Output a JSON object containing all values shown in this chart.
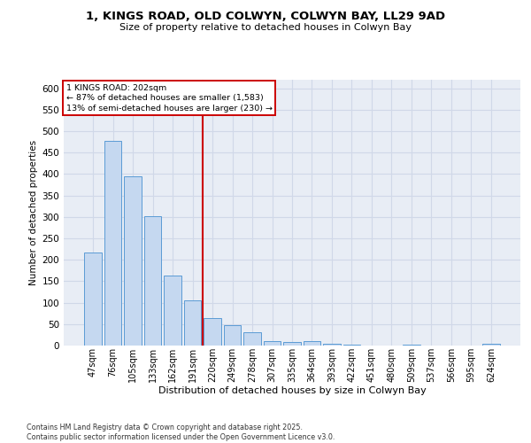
{
  "title_line1": "1, KINGS ROAD, OLD COLWYN, COLWYN BAY, LL29 9AD",
  "title_line2": "Size of property relative to detached houses in Colwyn Bay",
  "xlabel": "Distribution of detached houses by size in Colwyn Bay",
  "ylabel": "Number of detached properties",
  "categories": [
    "47sqm",
    "76sqm",
    "105sqm",
    "133sqm",
    "162sqm",
    "191sqm",
    "220sqm",
    "249sqm",
    "278sqm",
    "307sqm",
    "335sqm",
    "364sqm",
    "393sqm",
    "422sqm",
    "451sqm",
    "480sqm",
    "509sqm",
    "537sqm",
    "566sqm",
    "595sqm",
    "624sqm"
  ],
  "values": [
    218,
    478,
    395,
    302,
    163,
    106,
    65,
    47,
    30,
    10,
    8,
    10,
    5,
    2,
    0,
    0,
    2,
    0,
    0,
    0,
    4
  ],
  "bar_color": "#c5d8f0",
  "bar_edge_color": "#5b9bd5",
  "vline_x": 5.5,
  "vline_color": "#cc0000",
  "annotation_title": "1 KINGS ROAD: 202sqm",
  "annotation_line1": "← 87% of detached houses are smaller (1,583)",
  "annotation_line2": "13% of semi-detached houses are larger (230) →",
  "annotation_box_color": "#cc0000",
  "grid_color": "#d0d8e8",
  "bg_color": "#e8edf5",
  "footnote": "Contains HM Land Registry data © Crown copyright and database right 2025.\nContains public sector information licensed under the Open Government Licence v3.0.",
  "ylim": [
    0,
    620
  ],
  "yticks": [
    0,
    50,
    100,
    150,
    200,
    250,
    300,
    350,
    400,
    450,
    500,
    550,
    600
  ]
}
